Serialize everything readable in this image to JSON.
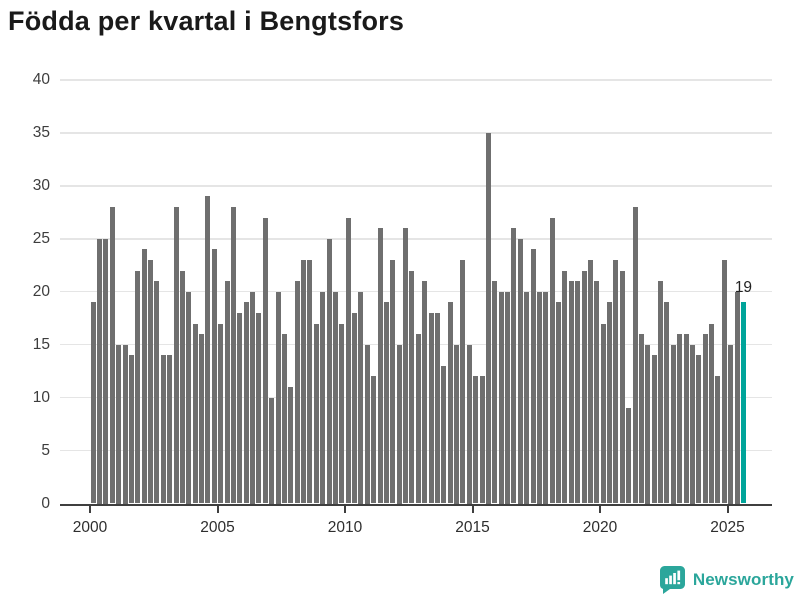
{
  "title": "Födda per kvartal i Bengtsfors",
  "chart_data": {
    "type": "bar",
    "title": "Födda per kvartal i Bengtsfors",
    "frequency": "quarterly",
    "x_start": "2000-Q1",
    "x_end": "2025-Q3",
    "categories_note": "one bar per quarter from 2000 Q1 through 2025 Q3",
    "values": [
      19,
      25,
      25,
      28,
      15,
      15,
      14,
      22,
      24,
      23,
      21,
      14,
      14,
      28,
      22,
      20,
      17,
      16,
      29,
      24,
      17,
      21,
      28,
      18,
      19,
      20,
      18,
      27,
      10,
      20,
      16,
      11,
      21,
      23,
      23,
      17,
      20,
      25,
      20,
      17,
      27,
      18,
      20,
      15,
      12,
      26,
      19,
      23,
      15,
      26,
      22,
      16,
      21,
      18,
      18,
      13,
      19,
      15,
      23,
      15,
      12,
      12,
      35,
      21,
      20,
      20,
      26,
      25,
      20,
      24,
      20,
      20,
      27,
      19,
      22,
      21,
      21,
      22,
      23,
      21,
      17,
      19,
      23,
      22,
      9,
      28,
      16,
      15,
      14,
      21,
      19,
      15,
      16,
      16,
      15,
      14,
      16,
      17,
      12,
      23,
      15,
      20,
      19
    ],
    "highlight_index": 102,
    "highlight_label": "19",
    "ylim": [
      0,
      40
    ],
    "yticks": [
      0,
      5,
      10,
      15,
      20,
      25,
      30,
      35,
      40
    ],
    "xtick_years": [
      2000,
      2005,
      2010,
      2015,
      2020,
      2025
    ],
    "grid": "horizontal",
    "legend": "none",
    "bar_color": "#6f6f6f",
    "highlight_color": "#00a49a",
    "axis_color": "#3f3f3f",
    "gridline_color": "#e5e5e5"
  },
  "logo": {
    "text": "Newsworthy",
    "color": "#2ba69b",
    "icon": "bar-chart-speech-bubble-icon"
  }
}
